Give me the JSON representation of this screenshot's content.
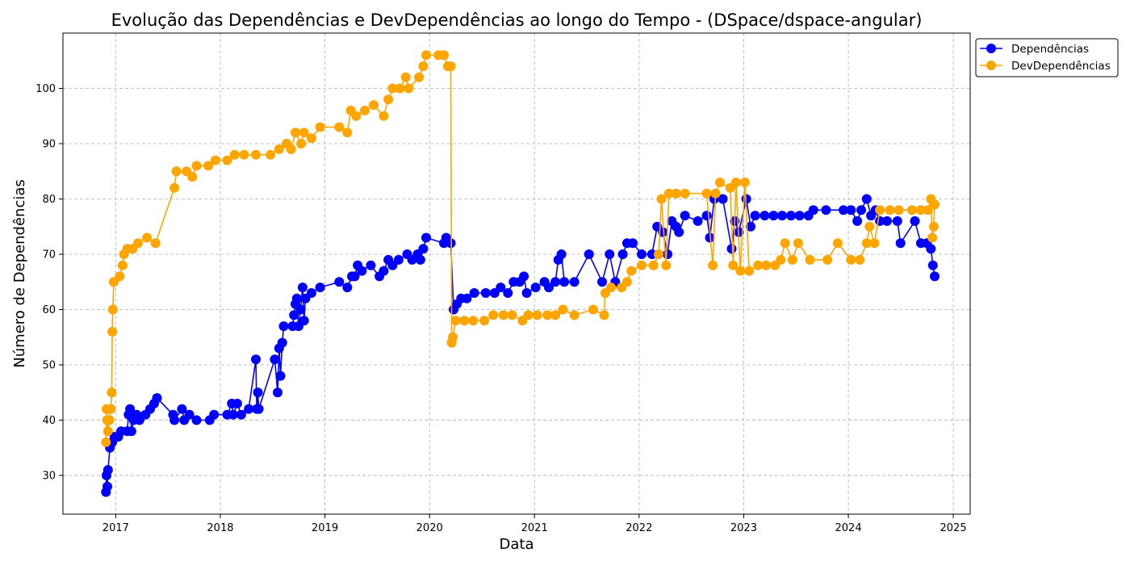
{
  "chart_data": {
    "type": "line",
    "title": "Evolução das Dependências e DevDependências ao longo do Tempo - (DSpace/dspace-angular)",
    "xlabel": "Data",
    "ylabel": "Número de Dependências",
    "xlim": [
      "2016-07-01",
      "2025-03-01"
    ],
    "ylim": [
      23,
      110
    ],
    "x_ticks": [
      "2017",
      "2018",
      "2019",
      "2020",
      "2021",
      "2022",
      "2023",
      "2024",
      "2025"
    ],
    "y_ticks": [
      30,
      40,
      50,
      60,
      70,
      80,
      90,
      100
    ],
    "grid": true,
    "legend_position": "outside-top-right",
    "series": [
      {
        "name": "Dependências",
        "color": "#0000ff",
        "points": [
          [
            "2016-11-28",
            27
          ],
          [
            "2016-11-30",
            30
          ],
          [
            "2016-12-03",
            28
          ],
          [
            "2016-12-05",
            31
          ],
          [
            "2016-12-12",
            35
          ],
          [
            "2016-12-20",
            36
          ],
          [
            "2016-12-28",
            37
          ],
          [
            "2017-01-10",
            37
          ],
          [
            "2017-01-20",
            38
          ],
          [
            "2017-02-10",
            38
          ],
          [
            "2017-02-15",
            41
          ],
          [
            "2017-02-20",
            42
          ],
          [
            "2017-02-25",
            38
          ],
          [
            "2017-03-05",
            40
          ],
          [
            "2017-03-15",
            41
          ],
          [
            "2017-03-25",
            40
          ],
          [
            "2017-04-15",
            41
          ],
          [
            "2017-05-01",
            42
          ],
          [
            "2017-05-15",
            43
          ],
          [
            "2017-05-25",
            44
          ],
          [
            "2017-07-20",
            41
          ],
          [
            "2017-07-25",
            40
          ],
          [
            "2017-08-20",
            42
          ],
          [
            "2017-08-28",
            40
          ],
          [
            "2017-09-15",
            41
          ],
          [
            "2017-10-10",
            40
          ],
          [
            "2017-11-25",
            40
          ],
          [
            "2017-12-10",
            41
          ],
          [
            "2018-01-25",
            41
          ],
          [
            "2018-02-10",
            43
          ],
          [
            "2018-02-15",
            41
          ],
          [
            "2018-03-01",
            43
          ],
          [
            "2018-03-15",
            41
          ],
          [
            "2018-04-10",
            42
          ],
          [
            "2018-05-05",
            51
          ],
          [
            "2018-05-08",
            42
          ],
          [
            "2018-05-12",
            45
          ],
          [
            "2018-05-15",
            42
          ],
          [
            "2018-07-10",
            51
          ],
          [
            "2018-07-20",
            45
          ],
          [
            "2018-07-25",
            53
          ],
          [
            "2018-07-30",
            48
          ],
          [
            "2018-08-05",
            54
          ],
          [
            "2018-08-10",
            57
          ],
          [
            "2018-09-10",
            57
          ],
          [
            "2018-09-15",
            59
          ],
          [
            "2018-09-20",
            61
          ],
          [
            "2018-09-25",
            62
          ],
          [
            "2018-10-01",
            57
          ],
          [
            "2018-10-08",
            60
          ],
          [
            "2018-10-15",
            64
          ],
          [
            "2018-10-20",
            58
          ],
          [
            "2018-10-25",
            62
          ],
          [
            "2018-11-15",
            63
          ],
          [
            "2018-12-15",
            64
          ],
          [
            "2019-02-20",
            65
          ],
          [
            "2019-03-20",
            64
          ],
          [
            "2019-04-05",
            66
          ],
          [
            "2019-04-15",
            66
          ],
          [
            "2019-04-25",
            68
          ],
          [
            "2019-05-10",
            67
          ],
          [
            "2019-06-10",
            68
          ],
          [
            "2019-07-10",
            66
          ],
          [
            "2019-07-25",
            67
          ],
          [
            "2019-08-10",
            69
          ],
          [
            "2019-08-25",
            68
          ],
          [
            "2019-09-15",
            69
          ],
          [
            "2019-10-15",
            70
          ],
          [
            "2019-11-01",
            69
          ],
          [
            "2019-11-20",
            70
          ],
          [
            "2019-11-30",
            69
          ],
          [
            "2019-12-10",
            71
          ],
          [
            "2019-12-20",
            73
          ],
          [
            "2020-02-20",
            72
          ],
          [
            "2020-02-28",
            73
          ],
          [
            "2020-03-15",
            72
          ],
          [
            "2020-03-25",
            60
          ],
          [
            "2020-04-05",
            61
          ],
          [
            "2020-04-20",
            62
          ],
          [
            "2020-05-10",
            62
          ],
          [
            "2020-06-05",
            63
          ],
          [
            "2020-07-15",
            63
          ],
          [
            "2020-08-15",
            63
          ],
          [
            "2020-09-05",
            64
          ],
          [
            "2020-09-30",
            63
          ],
          [
            "2020-10-20",
            65
          ],
          [
            "2020-11-10",
            65
          ],
          [
            "2020-11-25",
            66
          ],
          [
            "2020-12-05",
            63
          ],
          [
            "2021-01-05",
            64
          ],
          [
            "2021-02-05",
            65
          ],
          [
            "2021-02-20",
            64
          ],
          [
            "2021-03-15",
            65
          ],
          [
            "2021-03-25",
            69
          ],
          [
            "2021-04-05",
            70
          ],
          [
            "2021-04-15",
            65
          ],
          [
            "2021-05-20",
            65
          ],
          [
            "2021-07-10",
            70
          ],
          [
            "2021-08-25",
            65
          ],
          [
            "2021-09-20",
            70
          ],
          [
            "2021-10-10",
            65
          ],
          [
            "2021-11-05",
            70
          ],
          [
            "2021-11-20",
            72
          ],
          [
            "2021-12-10",
            72
          ],
          [
            "2022-01-10",
            70
          ],
          [
            "2022-02-15",
            70
          ],
          [
            "2022-03-05",
            75
          ],
          [
            "2022-03-25",
            74
          ],
          [
            "2022-04-10",
            70
          ],
          [
            "2022-04-25",
            76
          ],
          [
            "2022-05-10",
            75
          ],
          [
            "2022-05-20",
            74
          ],
          [
            "2022-06-10",
            77
          ],
          [
            "2022-07-25",
            76
          ],
          [
            "2022-08-25",
            77
          ],
          [
            "2022-09-05",
            73
          ],
          [
            "2022-09-20",
            80
          ],
          [
            "2022-10-20",
            80
          ],
          [
            "2022-11-20",
            71
          ],
          [
            "2022-12-01",
            76
          ],
          [
            "2022-12-15",
            74
          ],
          [
            "2023-01-10",
            80
          ],
          [
            "2023-01-25",
            75
          ],
          [
            "2023-02-10",
            77
          ],
          [
            "2023-03-15",
            77
          ],
          [
            "2023-04-15",
            77
          ],
          [
            "2023-05-15",
            77
          ],
          [
            "2023-06-15",
            77
          ],
          [
            "2023-07-15",
            77
          ],
          [
            "2023-08-15",
            77
          ],
          [
            "2023-09-01",
            78
          ],
          [
            "2023-10-15",
            78
          ],
          [
            "2023-12-15",
            78
          ],
          [
            "2024-01-10",
            78
          ],
          [
            "2024-02-01",
            76
          ],
          [
            "2024-02-15",
            78
          ],
          [
            "2024-03-05",
            80
          ],
          [
            "2024-03-20",
            77
          ],
          [
            "2024-04-05",
            78
          ],
          [
            "2024-04-20",
            76
          ],
          [
            "2024-05-15",
            76
          ],
          [
            "2024-06-20",
            76
          ],
          [
            "2024-07-01",
            72
          ],
          [
            "2024-08-20",
            76
          ],
          [
            "2024-09-10",
            72
          ],
          [
            "2024-10-01",
            72
          ],
          [
            "2024-10-15",
            71
          ],
          [
            "2024-10-22",
            68
          ],
          [
            "2024-10-28",
            66
          ]
        ]
      },
      {
        "name": "DevDependências",
        "color": "#ffa500",
        "points": [
          [
            "2016-11-28",
            36
          ],
          [
            "2016-11-30",
            42
          ],
          [
            "2016-12-02",
            40
          ],
          [
            "2016-12-05",
            38
          ],
          [
            "2016-12-10",
            40
          ],
          [
            "2016-12-15",
            42
          ],
          [
            "2016-12-18",
            45
          ],
          [
            "2016-12-20",
            56
          ],
          [
            "2016-12-22",
            60
          ],
          [
            "2016-12-25",
            65
          ],
          [
            "2017-01-15",
            66
          ],
          [
            "2017-01-25",
            68
          ],
          [
            "2017-01-30",
            70
          ],
          [
            "2017-02-10",
            71
          ],
          [
            "2017-03-01",
            71
          ],
          [
            "2017-03-20",
            72
          ],
          [
            "2017-04-20",
            73
          ],
          [
            "2017-05-20",
            72
          ],
          [
            "2017-07-25",
            82
          ],
          [
            "2017-08-01",
            85
          ],
          [
            "2017-09-05",
            85
          ],
          [
            "2017-09-25",
            84
          ],
          [
            "2017-10-10",
            86
          ],
          [
            "2017-11-20",
            86
          ],
          [
            "2017-12-15",
            87
          ],
          [
            "2018-01-25",
            87
          ],
          [
            "2018-02-20",
            88
          ],
          [
            "2018-03-25",
            88
          ],
          [
            "2018-05-05",
            88
          ],
          [
            "2018-06-25",
            88
          ],
          [
            "2018-07-25",
            89
          ],
          [
            "2018-08-20",
            90
          ],
          [
            "2018-09-05",
            89
          ],
          [
            "2018-09-20",
            92
          ],
          [
            "2018-10-10",
            90
          ],
          [
            "2018-10-20",
            92
          ],
          [
            "2018-11-15",
            91
          ],
          [
            "2018-12-15",
            93
          ],
          [
            "2019-02-20",
            93
          ],
          [
            "2019-03-20",
            92
          ],
          [
            "2019-04-01",
            96
          ],
          [
            "2019-04-20",
            95
          ],
          [
            "2019-05-20",
            96
          ],
          [
            "2019-06-20",
            97
          ],
          [
            "2019-07-25",
            95
          ],
          [
            "2019-08-10",
            98
          ],
          [
            "2019-08-25",
            100
          ],
          [
            "2019-09-20",
            100
          ],
          [
            "2019-10-10",
            102
          ],
          [
            "2019-10-20",
            100
          ],
          [
            "2019-11-25",
            102
          ],
          [
            "2019-12-10",
            104
          ],
          [
            "2019-12-20",
            106
          ],
          [
            "2020-02-01",
            106
          ],
          [
            "2020-02-20",
            106
          ],
          [
            "2020-03-05",
            104
          ],
          [
            "2020-03-15",
            104
          ],
          [
            "2020-03-18",
            54
          ],
          [
            "2020-03-22",
            55
          ],
          [
            "2020-04-01",
            58
          ],
          [
            "2020-05-01",
            58
          ],
          [
            "2020-06-01",
            58
          ],
          [
            "2020-07-10",
            58
          ],
          [
            "2020-08-10",
            59
          ],
          [
            "2020-09-15",
            59
          ],
          [
            "2020-10-15",
            59
          ],
          [
            "2020-11-20",
            58
          ],
          [
            "2020-12-10",
            59
          ],
          [
            "2021-01-10",
            59
          ],
          [
            "2021-02-15",
            59
          ],
          [
            "2021-03-15",
            59
          ],
          [
            "2021-04-10",
            60
          ],
          [
            "2021-05-20",
            59
          ],
          [
            "2021-07-25",
            60
          ],
          [
            "2021-09-01",
            59
          ],
          [
            "2021-09-05",
            63
          ],
          [
            "2021-09-25",
            64
          ],
          [
            "2021-11-01",
            64
          ],
          [
            "2021-11-20",
            65
          ],
          [
            "2021-12-05",
            67
          ],
          [
            "2022-01-10",
            68
          ],
          [
            "2022-02-20",
            68
          ],
          [
            "2022-03-10",
            70
          ],
          [
            "2022-03-20",
            80
          ],
          [
            "2022-04-05",
            68
          ],
          [
            "2022-04-15",
            81
          ],
          [
            "2022-05-10",
            81
          ],
          [
            "2022-06-10",
            81
          ],
          [
            "2022-08-25",
            81
          ],
          [
            "2022-09-15",
            68
          ],
          [
            "2022-09-25",
            81
          ],
          [
            "2022-10-10",
            83
          ],
          [
            "2022-11-15",
            82
          ],
          [
            "2022-11-25",
            68
          ],
          [
            "2022-12-05",
            83
          ],
          [
            "2022-12-20",
            67
          ],
          [
            "2023-01-05",
            83
          ],
          [
            "2023-01-20",
            67
          ],
          [
            "2023-02-20",
            68
          ],
          [
            "2023-03-20",
            68
          ],
          [
            "2023-04-20",
            68
          ],
          [
            "2023-05-10",
            69
          ],
          [
            "2023-05-25",
            72
          ],
          [
            "2023-06-20",
            69
          ],
          [
            "2023-07-10",
            72
          ],
          [
            "2023-08-20",
            69
          ],
          [
            "2023-10-20",
            69
          ],
          [
            "2023-11-25",
            72
          ],
          [
            "2024-01-10",
            69
          ],
          [
            "2024-02-10",
            69
          ],
          [
            "2024-03-05",
            72
          ],
          [
            "2024-03-15",
            75
          ],
          [
            "2024-04-01",
            72
          ],
          [
            "2024-04-20",
            78
          ],
          [
            "2024-05-25",
            78
          ],
          [
            "2024-06-25",
            78
          ],
          [
            "2024-08-10",
            78
          ],
          [
            "2024-09-10",
            78
          ],
          [
            "2024-10-05",
            78
          ],
          [
            "2024-10-15",
            80
          ],
          [
            "2024-10-20",
            73
          ],
          [
            "2024-10-25",
            75
          ],
          [
            "2024-10-28",
            79
          ]
        ]
      }
    ]
  }
}
